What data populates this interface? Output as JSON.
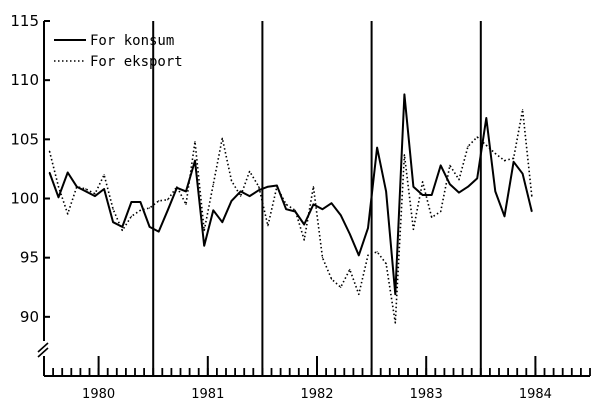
{
  "chart_data": {
    "type": "line",
    "title": "",
    "xlabel": "",
    "ylabel": "",
    "grid": false,
    "legend_position": "top-left",
    "xlim": [
      1979.5,
      1984.5
    ],
    "ylim": [
      85,
      115
    ],
    "y_ticks": [
      90,
      95,
      100,
      105,
      110,
      115
    ],
    "y_tick_labels": [
      "90",
      "95",
      "100",
      "105",
      "110",
      "115"
    ],
    "x_ticks": [
      1980,
      1981,
      1982,
      1983,
      1984
    ],
    "x_tick_labels": [
      "1980",
      "1981",
      "1982",
      "1983",
      "1984"
    ],
    "axis_break": true,
    "vertical_lines": [
      1980.5,
      1981.5,
      1982.5,
      1983.5
    ],
    "series": [
      {
        "name": "For konsum",
        "style": "solid",
        "color": "#000000",
        "x": [
          1979.55,
          1979.633,
          1979.717,
          1979.8,
          1979.883,
          1979.967,
          1980.05,
          1980.133,
          1980.217,
          1980.3,
          1980.383,
          1980.467,
          1980.55,
          1980.633,
          1980.717,
          1980.8,
          1980.883,
          1980.967,
          1981.05,
          1981.133,
          1981.217,
          1981.3,
          1981.383,
          1981.467,
          1981.55,
          1981.633,
          1981.717,
          1981.8,
          1981.883,
          1981.967,
          1982.05,
          1982.133,
          1982.217,
          1982.3,
          1982.383,
          1982.467,
          1982.55,
          1982.633,
          1982.717,
          1982.8,
          1982.883,
          1982.967,
          1983.05,
          1983.133,
          1983.217,
          1983.3,
          1983.383,
          1983.467,
          1983.55,
          1983.633,
          1983.717,
          1983.8,
          1983.883,
          1983.967
        ],
        "values": [
          102.2,
          100.1,
          102.2,
          101.0,
          100.6,
          100.2,
          100.8,
          98.0,
          97.6,
          99.7,
          99.7,
          97.6,
          97.2,
          99.0,
          100.9,
          100.6,
          103.2,
          96.0,
          99.0,
          98.0,
          99.8,
          100.6,
          100.2,
          100.7,
          101.0,
          101.1,
          99.1,
          98.9,
          97.8,
          99.5,
          99.1,
          99.6,
          98.6,
          97.0,
          95.2,
          97.5,
          104.3,
          100.6,
          91.9,
          108.8,
          101.0,
          100.3,
          100.3,
          102.8,
          101.2,
          100.5,
          101.0,
          101.7,
          106.8,
          100.6,
          98.5,
          103.1,
          102.1,
          98.9
        ]
      },
      {
        "name": "For eksport",
        "style": "dotted",
        "color": "#000000",
        "x": [
          1979.55,
          1979.633,
          1979.717,
          1979.8,
          1979.883,
          1979.967,
          1980.05,
          1980.133,
          1980.217,
          1980.3,
          1980.383,
          1980.467,
          1980.55,
          1980.633,
          1980.717,
          1980.8,
          1980.883,
          1980.967,
          1981.05,
          1981.133,
          1981.217,
          1981.3,
          1981.383,
          1981.467,
          1981.55,
          1981.633,
          1981.717,
          1981.8,
          1981.883,
          1981.967,
          1982.05,
          1982.133,
          1982.217,
          1982.3,
          1982.383,
          1982.467,
          1982.55,
          1982.633,
          1982.717,
          1982.8,
          1982.883,
          1982.967,
          1983.05,
          1983.133,
          1983.217,
          1983.3,
          1983.383,
          1983.467,
          1983.55,
          1983.633,
          1983.717,
          1983.8,
          1983.883,
          1983.967
        ],
        "values": [
          104.0,
          101.0,
          98.7,
          101.0,
          100.8,
          100.4,
          102.0,
          99.1,
          97.3,
          98.5,
          99.0,
          99.2,
          99.8,
          99.9,
          101.0,
          99.5,
          104.8,
          97.3,
          101.2,
          105.1,
          101.5,
          100.2,
          102.3,
          101.0,
          97.7,
          101.0,
          99.5,
          99.0,
          96.5,
          101.0,
          95.0,
          93.2,
          92.5,
          94.0,
          91.9,
          95.2,
          95.5,
          94.5,
          89.5,
          103.7,
          97.4,
          101.4,
          98.4,
          98.9,
          102.8,
          101.6,
          104.4,
          105.2,
          104.5,
          103.8,
          103.2,
          103.4,
          107.5,
          100.2
        ]
      }
    ]
  }
}
